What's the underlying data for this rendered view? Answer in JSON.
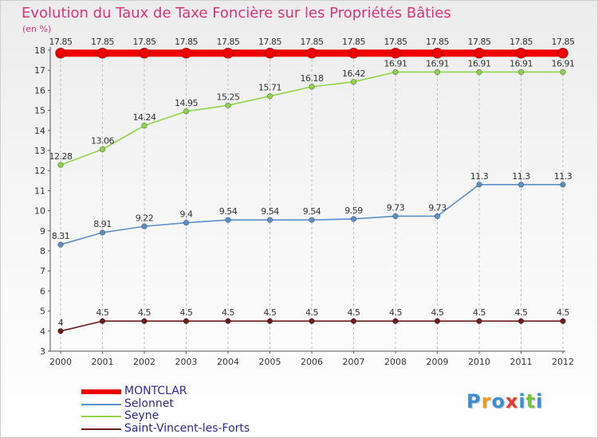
{
  "title": "Evolution du Taux de Taxe Foncière sur les Propriétés Bâties",
  "unit_label": "(en %)",
  "brand": {
    "text": [
      "P",
      "r",
      "o",
      "x",
      "i",
      "t",
      "i"
    ],
    "colors": [
      "#3b8fd6",
      "#f29a1f",
      "#3b8fd6",
      "#e8392a",
      "#3b8fd6",
      "#7cc242",
      "#3b8fd6"
    ]
  },
  "chart_data": {
    "type": "line",
    "title": "Evolution du Taux de Taxe Foncière sur les Propriétés Bâties",
    "ylabel": "(en %)",
    "xlabel": "",
    "x": [
      "2000",
      "2001",
      "2002",
      "2003",
      "2004",
      "2005",
      "2006",
      "2007",
      "2008",
      "2009",
      "2010",
      "2011",
      "2012"
    ],
    "ylim": [
      3,
      18
    ],
    "yticks": [
      3,
      4,
      5,
      6,
      7,
      8,
      9,
      10,
      11,
      12,
      13,
      14,
      15,
      16,
      17,
      18
    ],
    "series": [
      {
        "name": "MONTCLAR",
        "color": "#ee0000",
        "values": [
          17.85,
          17.85,
          17.85,
          17.85,
          17.85,
          17.85,
          17.85,
          17.85,
          17.85,
          17.85,
          17.85,
          17.85,
          17.85
        ],
        "labels": [
          "17.85",
          "17.85",
          "17.85",
          "17.85",
          "17.85",
          "17.85",
          "17.85",
          "17.85",
          "17.85",
          "17.85",
          "17.85",
          "17.85",
          "17.85"
        ]
      },
      {
        "name": "Selonnet",
        "color": "#5b8fc7",
        "values": [
          8.31,
          8.91,
          9.22,
          9.4,
          9.54,
          9.54,
          9.54,
          9.59,
          9.73,
          9.73,
          11.3,
          11.3,
          11.3
        ],
        "labels": [
          "8.31",
          "8.91",
          "9.22",
          "9.4",
          "9.54",
          "9.54",
          "9.54",
          "9.59",
          "9.73",
          "9.73",
          "11.3",
          "11.3",
          "11.3"
        ]
      },
      {
        "name": "Seyne",
        "color": "#8fd44a",
        "values": [
          12.28,
          13.06,
          14.24,
          14.95,
          15.25,
          15.71,
          16.18,
          16.42,
          16.91,
          16.91,
          16.91,
          16.91,
          16.91
        ],
        "labels": [
          "12.28",
          "13.06",
          "14.24",
          "14.95",
          "15.25",
          "15.71",
          "16.18",
          "16.42",
          "16.91",
          "16.91",
          "16.91",
          "16.91",
          "16.91"
        ]
      },
      {
        "name": "Saint-Vincent-les-Forts",
        "color": "#6b1d1d",
        "values": [
          4,
          4.5,
          4.5,
          4.5,
          4.5,
          4.5,
          4.5,
          4.5,
          4.5,
          4.5,
          4.5,
          4.5,
          4.5
        ],
        "labels": [
          "4",
          "4.5",
          "4.5",
          "4.5",
          "4.5",
          "4.5",
          "4.5",
          "4.5",
          "4.5",
          "4.5",
          "4.5",
          "4.5",
          "4.5"
        ]
      }
    ],
    "legend": [
      "MONTCLAR",
      "Selonnet",
      "Seyne",
      "Saint-Vincent-les-Forts"
    ]
  }
}
